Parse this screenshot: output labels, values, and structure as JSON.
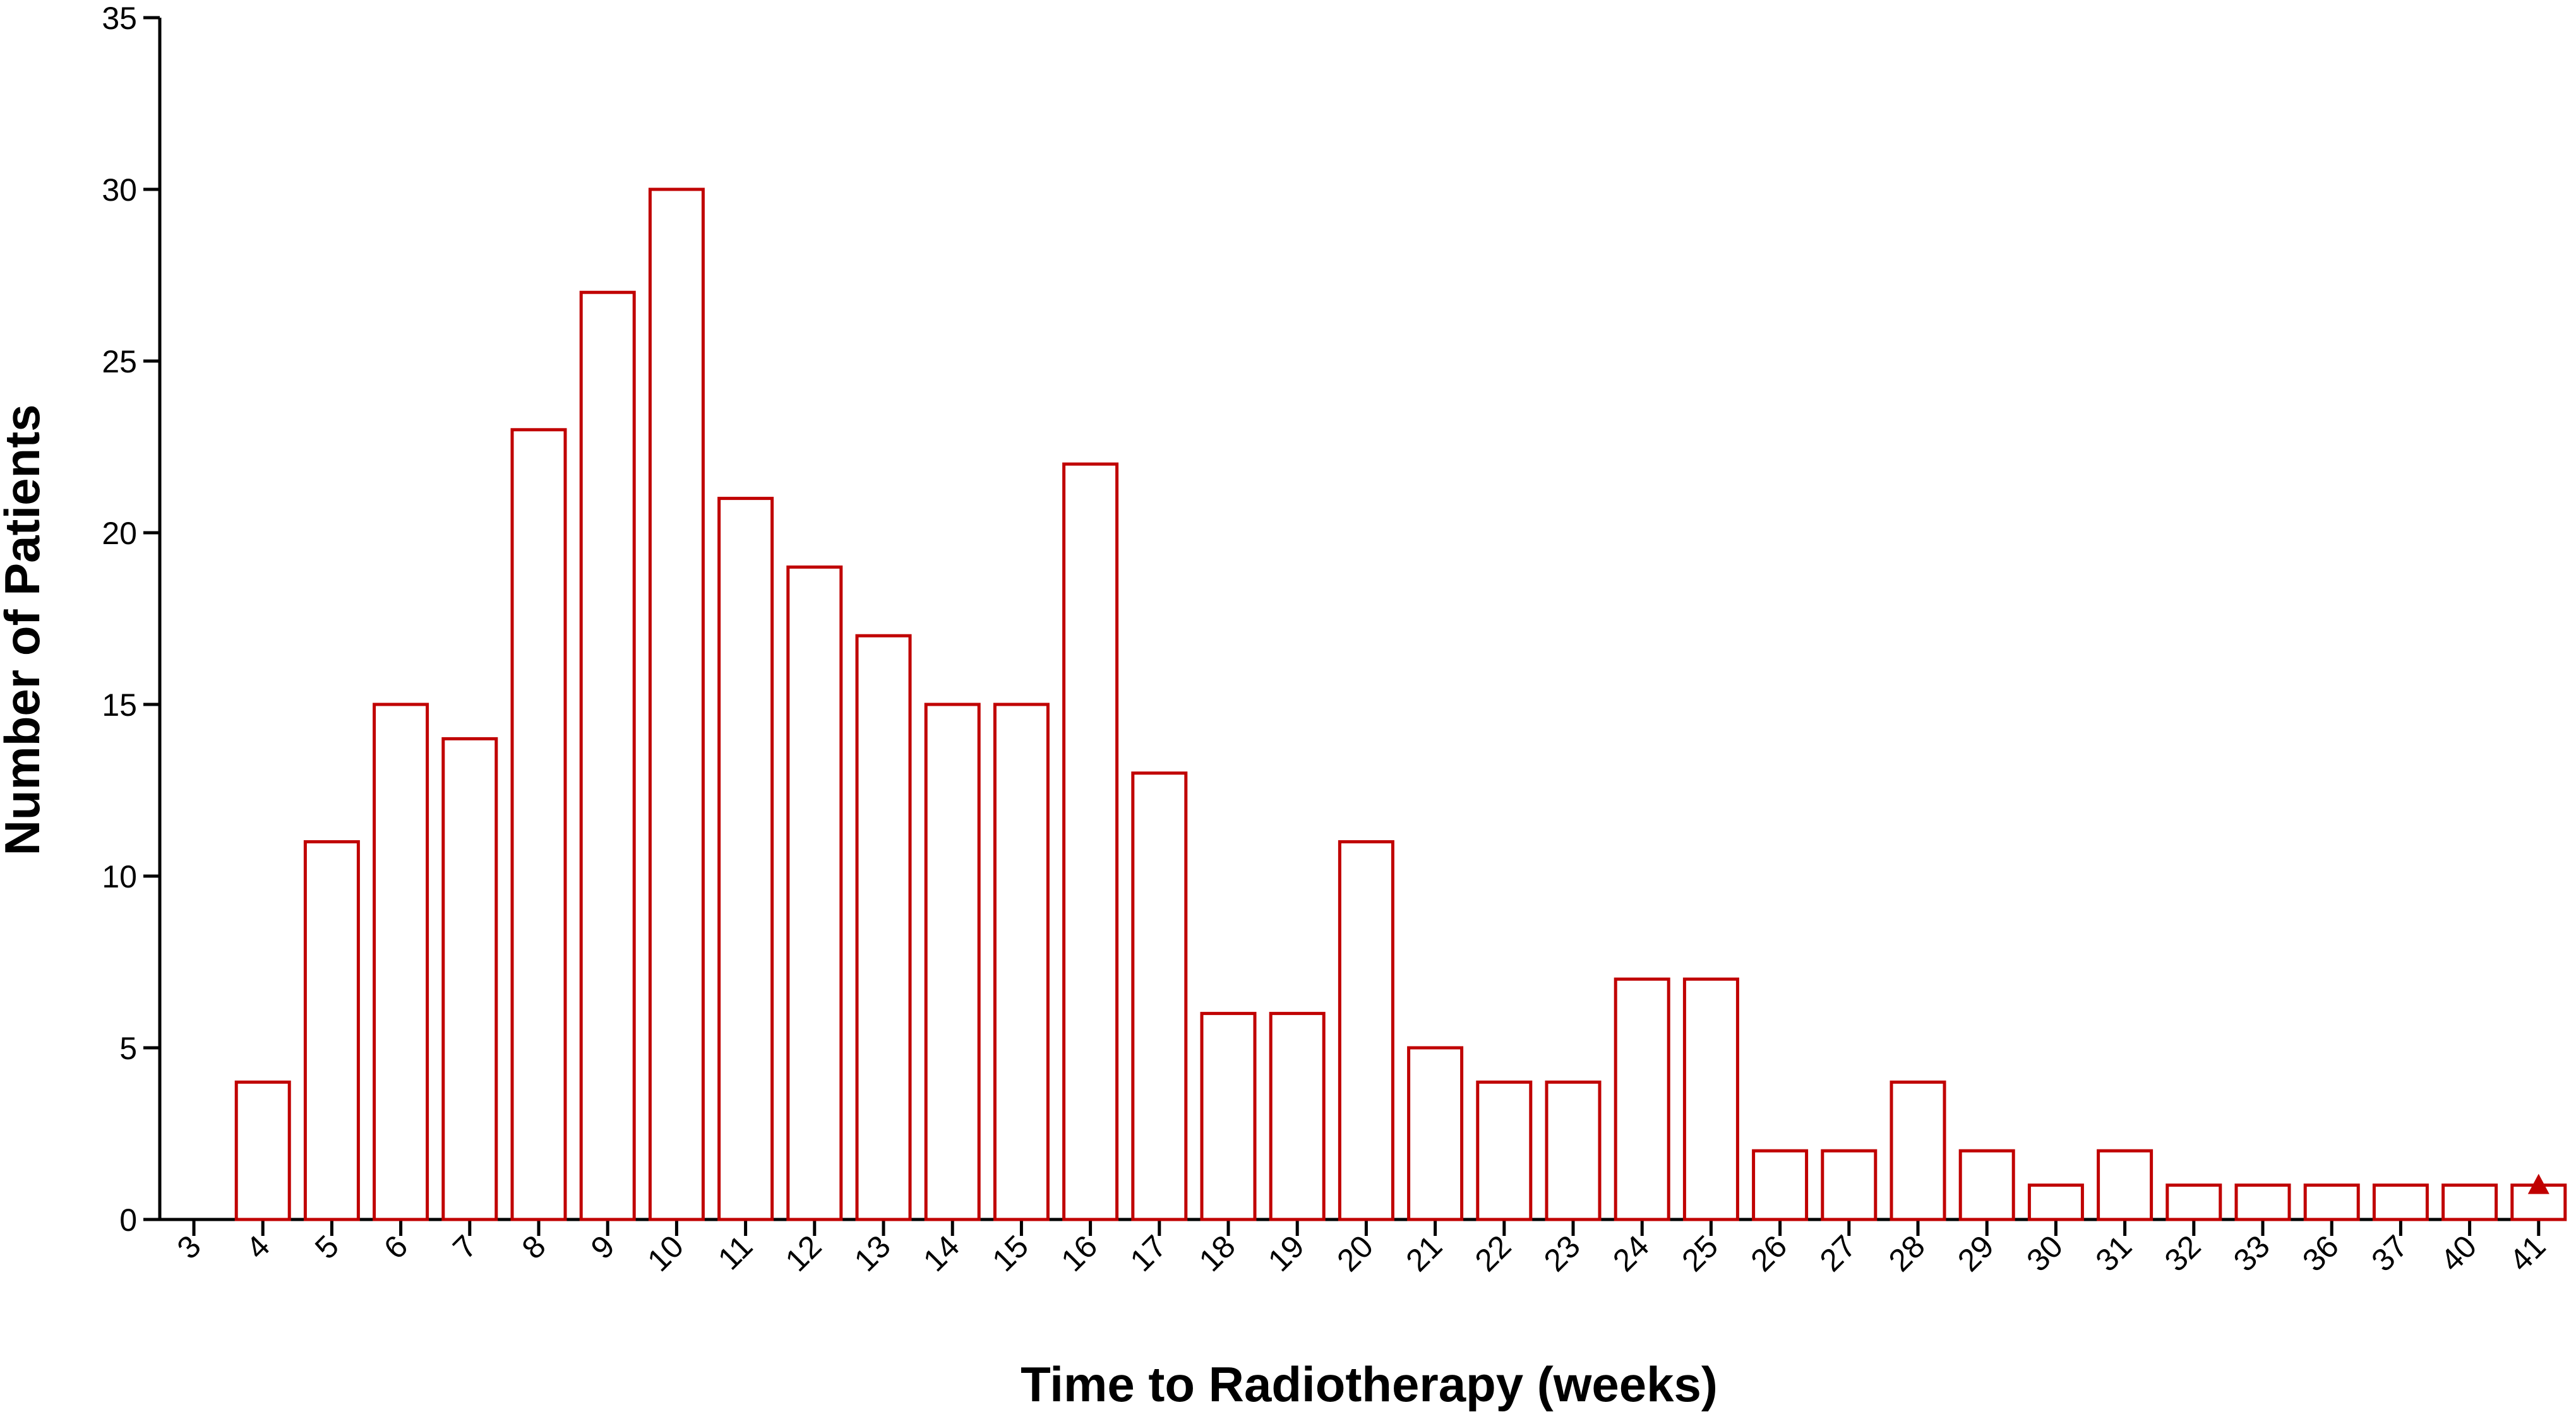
{
  "chart_data": {
    "type": "bar",
    "xlabel": "Time to Radiotherapy (weeks)",
    "ylabel": "Number of Patients",
    "ylim": [
      0,
      35
    ],
    "yticks": [
      0,
      5,
      10,
      15,
      20,
      25,
      30,
      35
    ],
    "categories": [
      "3",
      "4",
      "5",
      "6",
      "7",
      "8",
      "9",
      "10",
      "11",
      "12",
      "13",
      "14",
      "15",
      "16",
      "17",
      "18",
      "19",
      "20",
      "21",
      "22",
      "23",
      "24",
      "25",
      "26",
      "27",
      "28",
      "29",
      "30",
      "31",
      "32",
      "33",
      "36",
      "37",
      "40",
      "41"
    ],
    "values": [
      0,
      4,
      11,
      15,
      14,
      23,
      27,
      30,
      21,
      19,
      17,
      15,
      15,
      22,
      13,
      6,
      6,
      11,
      5,
      4,
      4,
      7,
      7,
      2,
      2,
      4,
      2,
      1,
      2,
      1,
      1,
      1,
      1,
      1,
      1
    ],
    "grid": false,
    "legend": "none",
    "bar_color": "#c00000",
    "marker": {
      "category": "41",
      "symbol": "triangle",
      "color": "#c00000"
    }
  }
}
